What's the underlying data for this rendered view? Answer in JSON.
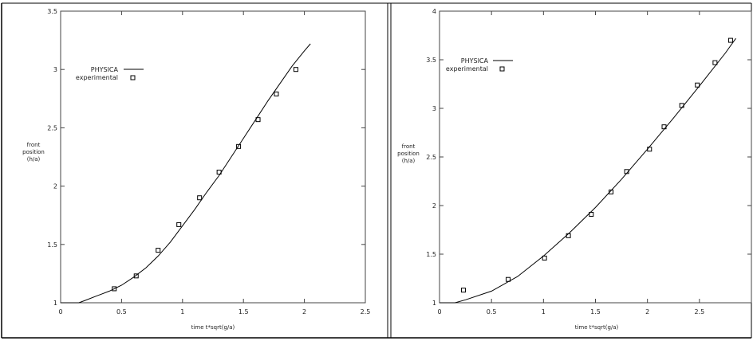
{
  "chart_data": [
    {
      "type": "line",
      "title": "",
      "xlabel": "time t*sqrt(g/a)",
      "ylabel_lines": [
        "front",
        "position",
        "(h/a)"
      ],
      "xlim": [
        0,
        2.5
      ],
      "ylim": [
        1,
        3.5
      ],
      "xticks": [
        "0",
        "0.5",
        "1",
        "1.5",
        "2",
        "2.5"
      ],
      "yticks": [
        "1",
        "1.5",
        "2",
        "2.5",
        "3",
        "3.5"
      ],
      "xtick_values": [
        0,
        0.5,
        1,
        1.5,
        2,
        2.5
      ],
      "ytick_values": [
        1,
        1.5,
        2,
        2.5,
        3,
        3.5
      ],
      "grid": false,
      "legend_position": "top-left",
      "series": [
        {
          "name": "PHYSICA",
          "style": "line",
          "x": [
            0.0,
            0.15,
            0.2,
            0.3,
            0.4,
            0.5,
            0.6,
            0.7,
            0.8,
            0.9,
            1.0,
            1.1,
            1.2,
            1.3,
            1.4,
            1.5,
            1.6,
            1.7,
            1.8,
            1.9,
            2.0,
            2.05
          ],
          "y": [
            1.0,
            1.0,
            1.02,
            1.06,
            1.1,
            1.15,
            1.22,
            1.3,
            1.4,
            1.52,
            1.66,
            1.8,
            1.95,
            2.09,
            2.25,
            2.41,
            2.57,
            2.73,
            2.88,
            3.03,
            3.16,
            3.22
          ]
        },
        {
          "name": "experimental",
          "style": "square",
          "x": [
            0.44,
            0.62,
            0.8,
            0.97,
            1.14,
            1.3,
            1.46,
            1.62,
            1.77,
            1.93
          ],
          "y": [
            1.12,
            1.23,
            1.45,
            1.67,
            1.9,
            2.12,
            2.34,
            2.57,
            2.79,
            3.0
          ]
        }
      ]
    },
    {
      "type": "line",
      "title": "",
      "xlabel": "time t*sqrt(g/a)",
      "ylabel_lines": [
        "front",
        "position",
        "(h/a)"
      ],
      "xlim": [
        0,
        3
      ],
      "ylim": [
        1,
        4
      ],
      "xticks": [
        "0",
        "0.5",
        "1",
        "1.5",
        "2",
        "2.5"
      ],
      "yticks": [
        "1",
        "1.5",
        "2",
        "2.5",
        "3",
        "3.5",
        "4"
      ],
      "xtick_values": [
        0,
        0.5,
        1,
        1.5,
        2,
        2.5
      ],
      "ytick_values": [
        1,
        1.5,
        2,
        2.5,
        3,
        3.5,
        4
      ],
      "grid": false,
      "legend_position": "top-left",
      "series": [
        {
          "name": "PHYSICA",
          "style": "line",
          "x": [
            0.0,
            0.15,
            0.25,
            0.5,
            0.75,
            1.0,
            1.25,
            1.5,
            1.75,
            2.0,
            2.25,
            2.5,
            2.75,
            2.85
          ],
          "y": [
            1.0,
            1.0,
            1.03,
            1.12,
            1.27,
            1.48,
            1.72,
            1.98,
            2.27,
            2.58,
            2.9,
            3.23,
            3.57,
            3.72
          ]
        },
        {
          "name": "experimental",
          "style": "square",
          "x": [
            0.23,
            0.66,
            1.01,
            1.24,
            1.46,
            1.65,
            1.8,
            2.02,
            2.16,
            2.33,
            2.48,
            2.65,
            2.8
          ],
          "y": [
            1.13,
            1.24,
            1.46,
            1.69,
            1.91,
            2.14,
            2.35,
            2.58,
            2.81,
            3.03,
            3.24,
            3.47,
            3.7
          ]
        }
      ]
    }
  ]
}
